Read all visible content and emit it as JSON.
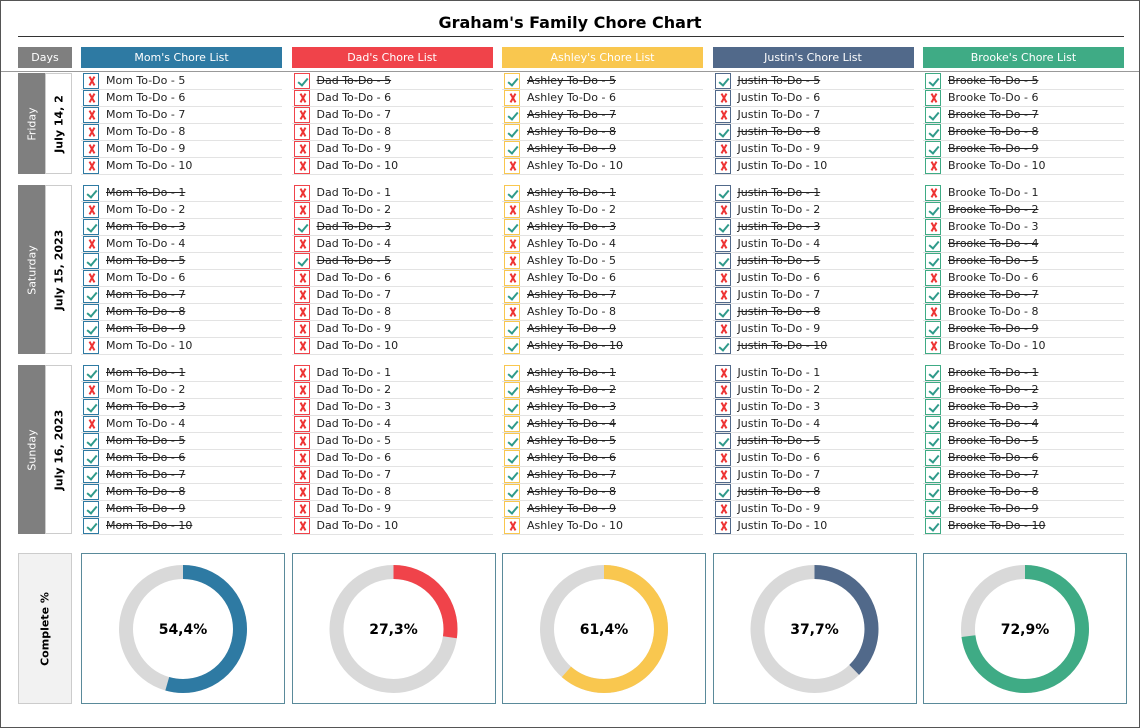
{
  "title": "Graham's Family Chore Chart",
  "days_header": "Days",
  "complete_label": "Complete %",
  "columns": [
    {
      "name": "Mom's Chore List",
      "color": "#2e7aa3"
    },
    {
      "name": "Dad's Chore List",
      "color": "#f0434a"
    },
    {
      "name": "Ashley's Chore List",
      "color": "#f9c74f"
    },
    {
      "name": "Justin's Chore List",
      "color": "#51698a"
    },
    {
      "name": "Brooke's Chore List",
      "color": "#3fab85"
    }
  ],
  "days": [
    {
      "name": "Friday",
      "date": "July 14, 2",
      "lists": [
        [
          {
            "text": "Mom To-Do - 5",
            "done": false
          },
          {
            "text": "Mom To-Do - 6",
            "done": false
          },
          {
            "text": "Mom To-Do - 7",
            "done": false
          },
          {
            "text": "Mom To-Do - 8",
            "done": false
          },
          {
            "text": "Mom To-Do - 9",
            "done": false
          },
          {
            "text": "Mom To-Do - 10",
            "done": false
          }
        ],
        [
          {
            "text": "Dad To-Do - 5",
            "done": true
          },
          {
            "text": "Dad To-Do - 6",
            "done": false
          },
          {
            "text": "Dad To-Do - 7",
            "done": false
          },
          {
            "text": "Dad To-Do - 8",
            "done": false
          },
          {
            "text": "Dad To-Do - 9",
            "done": false
          },
          {
            "text": "Dad To-Do - 10",
            "done": false
          }
        ],
        [
          {
            "text": "Ashley To-Do - 5",
            "done": true
          },
          {
            "text": "Ashley To-Do - 6",
            "done": false
          },
          {
            "text": "Ashley To-Do - 7",
            "done": true
          },
          {
            "text": "Ashley To-Do - 8",
            "done": true
          },
          {
            "text": "Ashley To-Do - 9",
            "done": true
          },
          {
            "text": "Ashley To-Do - 10",
            "done": false
          }
        ],
        [
          {
            "text": "Justin To-Do - 5",
            "done": true
          },
          {
            "text": "Justin To-Do - 6",
            "done": false
          },
          {
            "text": "Justin To-Do - 7",
            "done": false
          },
          {
            "text": "Justin To-Do - 8",
            "done": true
          },
          {
            "text": "Justin To-Do - 9",
            "done": false
          },
          {
            "text": "Justin To-Do - 10",
            "done": false
          }
        ],
        [
          {
            "text": "Brooke To-Do - 5",
            "done": true
          },
          {
            "text": "Brooke To-Do - 6",
            "done": false
          },
          {
            "text": "Brooke To-Do - 7",
            "done": true
          },
          {
            "text": "Brooke To-Do - 8",
            "done": true
          },
          {
            "text": "Brooke To-Do - 9",
            "done": true
          },
          {
            "text": "Brooke To-Do - 10",
            "done": false
          }
        ]
      ]
    },
    {
      "name": "Saturday",
      "date": "July 15, 2023",
      "lists": [
        [
          {
            "text": "Mom To-Do - 1",
            "done": true
          },
          {
            "text": "Mom To-Do - 2",
            "done": false
          },
          {
            "text": "Mom To-Do - 3",
            "done": true
          },
          {
            "text": "Mom To-Do - 4",
            "done": false
          },
          {
            "text": "Mom To-Do - 5",
            "done": true
          },
          {
            "text": "Mom To-Do - 6",
            "done": false
          },
          {
            "text": "Mom To-Do - 7",
            "done": true
          },
          {
            "text": "Mom To-Do - 8",
            "done": true
          },
          {
            "text": "Mom To-Do - 9",
            "done": true
          },
          {
            "text": "Mom To-Do - 10",
            "done": false
          }
        ],
        [
          {
            "text": "Dad To-Do - 1",
            "done": false
          },
          {
            "text": "Dad To-Do - 2",
            "done": false
          },
          {
            "text": "Dad To-Do - 3",
            "done": true
          },
          {
            "text": "Dad To-Do - 4",
            "done": false
          },
          {
            "text": "Dad To-Do - 5",
            "done": true
          },
          {
            "text": "Dad To-Do - 6",
            "done": false
          },
          {
            "text": "Dad To-Do - 7",
            "done": false
          },
          {
            "text": "Dad To-Do - 8",
            "done": false
          },
          {
            "text": "Dad To-Do - 9",
            "done": false
          },
          {
            "text": "Dad To-Do - 10",
            "done": false
          }
        ],
        [
          {
            "text": "Ashley To-Do - 1",
            "done": true
          },
          {
            "text": "Ashley To-Do - 2",
            "done": false
          },
          {
            "text": "Ashley To-Do - 3",
            "done": true
          },
          {
            "text": "Ashley To-Do - 4",
            "done": false
          },
          {
            "text": "Ashley To-Do - 5",
            "done": false
          },
          {
            "text": "Ashley To-Do - 6",
            "done": false
          },
          {
            "text": "Ashley To-Do - 7",
            "done": true
          },
          {
            "text": "Ashley To-Do - 8",
            "done": false
          },
          {
            "text": "Ashley To-Do - 9",
            "done": true
          },
          {
            "text": "Ashley To-Do - 10",
            "done": true
          }
        ],
        [
          {
            "text": "Justin To-Do - 1",
            "done": true
          },
          {
            "text": "Justin To-Do - 2",
            "done": false
          },
          {
            "text": "Justin To-Do - 3",
            "done": true
          },
          {
            "text": "Justin To-Do - 4",
            "done": false
          },
          {
            "text": "Justin To-Do - 5",
            "done": true
          },
          {
            "text": "Justin To-Do - 6",
            "done": false
          },
          {
            "text": "Justin To-Do - 7",
            "done": false
          },
          {
            "text": "Justin To-Do - 8",
            "done": true
          },
          {
            "text": "Justin To-Do - 9",
            "done": false
          },
          {
            "text": "Justin To-Do - 10",
            "done": true
          }
        ],
        [
          {
            "text": "Brooke To-Do - 1",
            "done": false
          },
          {
            "text": "Brooke To-Do - 2",
            "done": true
          },
          {
            "text": "Brooke To-Do - 3",
            "done": false
          },
          {
            "text": "Brooke To-Do - 4",
            "done": true
          },
          {
            "text": "Brooke To-Do - 5",
            "done": true
          },
          {
            "text": "Brooke To-Do - 6",
            "done": false
          },
          {
            "text": "Brooke To-Do - 7",
            "done": true
          },
          {
            "text": "Brooke To-Do - 8",
            "done": false
          },
          {
            "text": "Brooke To-Do - 9",
            "done": true
          },
          {
            "text": "Brooke To-Do - 10",
            "done": false
          }
        ]
      ]
    },
    {
      "name": "Sunday",
      "date": "July 16, 2023",
      "lists": [
        [
          {
            "text": "Mom To-Do - 1",
            "done": true
          },
          {
            "text": "Mom To-Do - 2",
            "done": false
          },
          {
            "text": "Mom To-Do - 3",
            "done": true
          },
          {
            "text": "Mom To-Do - 4",
            "done": false
          },
          {
            "text": "Mom To-Do - 5",
            "done": true
          },
          {
            "text": "Mom To-Do - 6",
            "done": true
          },
          {
            "text": "Mom To-Do - 7",
            "done": true
          },
          {
            "text": "Mom To-Do - 8",
            "done": true
          },
          {
            "text": "Mom To-Do - 9",
            "done": true
          },
          {
            "text": "Mom To-Do - 10",
            "done": true
          }
        ],
        [
          {
            "text": "Dad To-Do - 1",
            "done": false
          },
          {
            "text": "Dad To-Do - 2",
            "done": false
          },
          {
            "text": "Dad To-Do - 3",
            "done": false
          },
          {
            "text": "Dad To-Do - 4",
            "done": false
          },
          {
            "text": "Dad To-Do - 5",
            "done": false
          },
          {
            "text": "Dad To-Do - 6",
            "done": false
          },
          {
            "text": "Dad To-Do - 7",
            "done": false
          },
          {
            "text": "Dad To-Do - 8",
            "done": false
          },
          {
            "text": "Dad To-Do - 9",
            "done": false
          },
          {
            "text": "Dad To-Do - 10",
            "done": false
          }
        ],
        [
          {
            "text": "Ashley To-Do - 1",
            "done": true
          },
          {
            "text": "Ashley To-Do - 2",
            "done": true
          },
          {
            "text": "Ashley To-Do - 3",
            "done": true
          },
          {
            "text": "Ashley To-Do - 4",
            "done": true
          },
          {
            "text": "Ashley To-Do - 5",
            "done": true
          },
          {
            "text": "Ashley To-Do - 6",
            "done": true
          },
          {
            "text": "Ashley To-Do - 7",
            "done": true
          },
          {
            "text": "Ashley To-Do - 8",
            "done": true
          },
          {
            "text": "Ashley To-Do - 9",
            "done": true
          },
          {
            "text": "Ashley To-Do - 10",
            "done": false
          }
        ],
        [
          {
            "text": "Justin To-Do - 1",
            "done": false
          },
          {
            "text": "Justin To-Do - 2",
            "done": false
          },
          {
            "text": "Justin To-Do - 3",
            "done": false
          },
          {
            "text": "Justin To-Do - 4",
            "done": false
          },
          {
            "text": "Justin To-Do - 5",
            "done": true
          },
          {
            "text": "Justin To-Do - 6",
            "done": false
          },
          {
            "text": "Justin To-Do - 7",
            "done": false
          },
          {
            "text": "Justin To-Do - 8",
            "done": true
          },
          {
            "text": "Justin To-Do - 9",
            "done": false
          },
          {
            "text": "Justin To-Do - 10",
            "done": false
          }
        ],
        [
          {
            "text": "Brooke To-Do - 1",
            "done": true
          },
          {
            "text": "Brooke To-Do - 2",
            "done": true
          },
          {
            "text": "Brooke To-Do - 3",
            "done": true
          },
          {
            "text": "Brooke To-Do - 4",
            "done": true
          },
          {
            "text": "Brooke To-Do - 5",
            "done": true
          },
          {
            "text": "Brooke To-Do - 6",
            "done": true
          },
          {
            "text": "Brooke To-Do - 7",
            "done": true
          },
          {
            "text": "Brooke To-Do - 8",
            "done": true
          },
          {
            "text": "Brooke To-Do - 9",
            "done": true
          },
          {
            "text": "Brooke To-Do - 10",
            "done": true
          }
        ]
      ]
    }
  ],
  "completion": [
    {
      "value": 54.4,
      "label": "54,4%"
    },
    {
      "value": 27.3,
      "label": "27,3%"
    },
    {
      "value": 61.4,
      "label": "61,4%"
    },
    {
      "value": 37.7,
      "label": "37,7%"
    },
    {
      "value": 72.9,
      "label": "72,9%"
    }
  ]
}
